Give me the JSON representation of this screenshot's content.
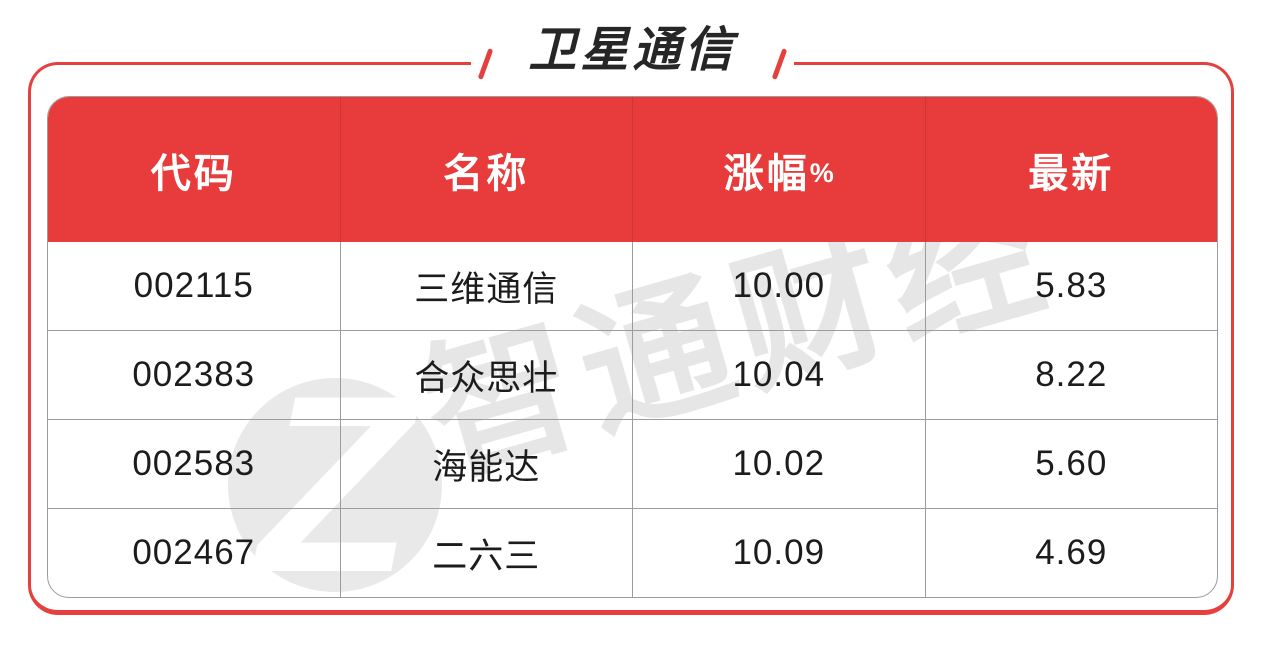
{
  "page": {
    "title": "卫星通信"
  },
  "watermark": {
    "logo_letter": "Z",
    "text": "智通财经"
  },
  "table": {
    "headers": [
      {
        "label": "代码",
        "suffix": ""
      },
      {
        "label": "名称",
        "suffix": ""
      },
      {
        "label": "涨幅",
        "suffix": "%"
      },
      {
        "label": "最新",
        "suffix": ""
      }
    ],
    "rows": [
      {
        "code": "002115",
        "name": "三维通信",
        "change": "10.00",
        "latest": "5.83"
      },
      {
        "code": "002383",
        "name": "合众思壮",
        "change": "10.04",
        "latest": "8.22"
      },
      {
        "code": "002583",
        "name": "海能达",
        "change": "10.02",
        "latest": "5.60"
      },
      {
        "code": "002467",
        "name": "二六三",
        "change": "10.09",
        "latest": "4.69"
      }
    ]
  },
  "chart_data": {
    "type": "table",
    "title": "卫星通信",
    "columns": [
      "代码",
      "名称",
      "涨幅%",
      "最新"
    ],
    "rows": [
      [
        "002115",
        "三维通信",
        10.0,
        5.83
      ],
      [
        "002383",
        "合众思壮",
        10.04,
        8.22
      ],
      [
        "002583",
        "海能达",
        10.02,
        5.6
      ],
      [
        "002467",
        "二六三",
        10.09,
        4.69
      ]
    ]
  },
  "colors": {
    "accent_red": "#e83c3c",
    "border_red": "#e5403e",
    "grid_gray": "#9c9c9c",
    "title_text": "#262626",
    "cell_text": "#1c1c1c",
    "watermark_gray": "#e6e6e6"
  }
}
